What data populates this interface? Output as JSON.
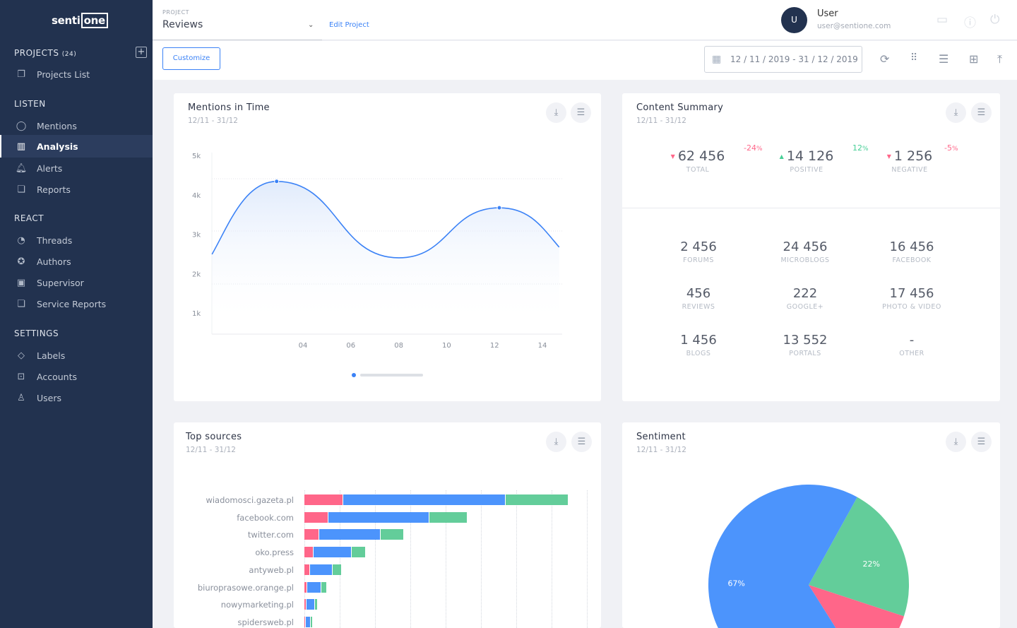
{
  "sidebar": {
    "logo": {
      "left": "senti",
      "right": "one"
    },
    "projects": {
      "label": "PROJECTS",
      "count": "(24)",
      "items": [
        {
          "label": "Projects List",
          "icon": "projects-icon"
        }
      ]
    },
    "listen": {
      "label": "LISTEN",
      "items": [
        {
          "label": "Mentions",
          "icon": "chat-icon"
        },
        {
          "label": "Analysis",
          "icon": "bar-chart-icon",
          "active": true
        },
        {
          "label": "Alerts",
          "icon": "bell-icon"
        },
        {
          "label": "Reports",
          "icon": "report-icon"
        }
      ]
    },
    "react": {
      "label": "REACT",
      "items": [
        {
          "label": "Threads",
          "icon": "threads-icon"
        },
        {
          "label": "Authors",
          "icon": "star-icon"
        },
        {
          "label": "Supervisor",
          "icon": "monitor-icon"
        },
        {
          "label": "Service Reports",
          "icon": "report-icon"
        }
      ]
    },
    "settings": {
      "label": "SETTINGS",
      "items": [
        {
          "label": "Labels",
          "icon": "tag-icon"
        },
        {
          "label": "Accounts",
          "icon": "key-icon"
        },
        {
          "label": "Users",
          "icon": "user-icon"
        }
      ]
    }
  },
  "header": {
    "project_label": "PROJECT",
    "project_value": "Reviews",
    "edit_label": "Edit Project",
    "user_initial": "U",
    "user_name": "User",
    "user_email": "user@sentione.com"
  },
  "toolbar": {
    "customize_label": "Customize",
    "date_range": "12 / 11 / 2019 - 31 / 12 / 2019"
  },
  "mentions": {
    "title": "Mentions in Time",
    "subtitle": "12/11   - 31/12"
  },
  "summary": {
    "title": "Content Summary",
    "subtitle": "12/11   - 31/12",
    "top": [
      {
        "value": "62 456",
        "label": "TOTAL",
        "change": "-24",
        "unit": "%",
        "trend": "down"
      },
      {
        "value": "14 126",
        "label": "POSITIVE",
        "change": "12",
        "unit": "%",
        "trend": "up"
      },
      {
        "value": "1 256",
        "label": "NEGATIVE",
        "change": "-5",
        "unit": "%",
        "trend": "down"
      }
    ],
    "grid": [
      {
        "value": "2 456",
        "label": "FORUMS"
      },
      {
        "value": "24 456",
        "label": "MICROBLOGS"
      },
      {
        "value": "16 456",
        "label": "FACEBOOK"
      },
      {
        "value": "456",
        "label": "REVIEWS"
      },
      {
        "value": "222",
        "label": "GOOGLE+"
      },
      {
        "value": "17 456",
        "label": "PHOTO & VIDEO"
      },
      {
        "value": "1 456",
        "label": "BLOGS"
      },
      {
        "value": "13 552",
        "label": "PORTALS"
      },
      {
        "value": "-",
        "label": "OTHER"
      }
    ]
  },
  "sources": {
    "title": "Top sources",
    "subtitle": "12/11   - 31/12"
  },
  "sentiment": {
    "title": "Sentiment",
    "subtitle": "12/11   - 31/12"
  },
  "colors": {
    "negative": "#ff6689",
    "neutral": "#4c94fc",
    "positive": "#63cd9a",
    "accent": "#3b82f6",
    "sidebar": "#22324f"
  },
  "chart_data": [
    {
      "type": "line",
      "ylim": [
        0,
        5000
      ],
      "yticks": [
        "5k",
        "4k",
        "3k",
        "2k",
        "1k"
      ],
      "ytick_values": [
        5000,
        4000,
        3000,
        2000,
        1000
      ],
      "xticks": [
        "04",
        "06",
        "08",
        "10",
        "12",
        "14"
      ],
      "xtick_values": [
        4,
        6,
        8,
        10,
        12,
        14
      ],
      "x": [
        0.2,
        2.9,
        8,
        12.2,
        14.7
      ],
      "y": [
        2490,
        4340,
        2400,
        3670,
        2670
      ],
      "markers": [
        1,
        3
      ]
    },
    {
      "type": "bar",
      "orientation": "horizontal",
      "stacked": true,
      "categories": [
        "wiadomosci.gazeta.pl",
        "facebook.com",
        "twitter.com",
        "oko.press",
        "antyweb.pl",
        "biuroprasowe.orange.pl",
        "nowymarketing.pl",
        "spidersweb.pl"
      ],
      "series": [
        {
          "values": [
            55,
            34,
            21,
            13,
            8,
            4,
            3,
            2
          ],
          "color": "#ff6689"
        },
        {
          "values": [
            230,
            143,
            87,
            54,
            32,
            20,
            12,
            7
          ],
          "color": "#4c94fc"
        },
        {
          "values": [
            89,
            54,
            33,
            20,
            13,
            8,
            4,
            3
          ],
          "color": "#63cd9a"
        }
      ],
      "xlim": [
        0,
        400
      ]
    },
    {
      "type": "pie",
      "labels": [
        "22%",
        "",
        "67%"
      ],
      "values": [
        22,
        11,
        67
      ],
      "colors": [
        "#63cd9a",
        "#ff6689",
        "#4c94fc"
      ]
    }
  ]
}
